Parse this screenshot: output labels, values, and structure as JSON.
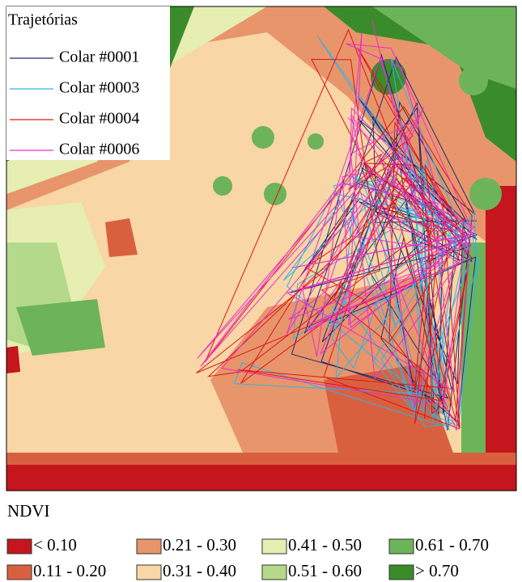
{
  "trajectories": {
    "title": "Trajetórias",
    "items": [
      {
        "label": "Colar #0001",
        "color": "#1b2a78"
      },
      {
        "label": "Colar #0003",
        "color": "#2fb3e8"
      },
      {
        "label": "Colar #0004",
        "color": "#e01515"
      },
      {
        "label": "Colar #0006",
        "color": "#e830c8"
      }
    ]
  },
  "ndvi_legend": {
    "title": "NDVI",
    "classes": [
      {
        "label": "< 0.10",
        "color": "#c4161c"
      },
      {
        "label": "0.11 - 0.20",
        "color": "#d9603f"
      },
      {
        "label": "0.21 - 0.30",
        "color": "#e8956b"
      },
      {
        "label": "0.31 - 0.40",
        "color": "#f8d6a6"
      },
      {
        "label": "0.41 - 0.50",
        "color": "#e6eeb2"
      },
      {
        "label": "0.51 - 0.60",
        "color": "#b4d98a"
      },
      {
        "label": "0.61 - 0.70",
        "color": "#6db35a"
      },
      {
        "label": "> 0.70",
        "color": "#3a8c2a"
      }
    ]
  }
}
